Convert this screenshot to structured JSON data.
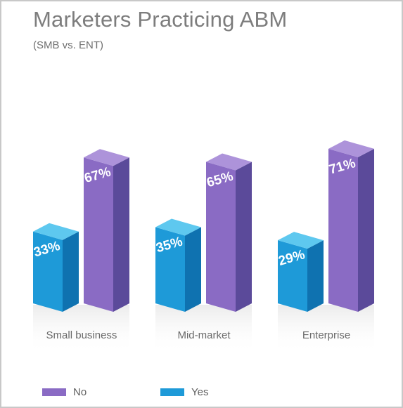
{
  "chart_data": {
    "type": "bar",
    "title": "Marketers Practicing ABM",
    "subtitle": "(SMB vs. ENT)",
    "categories": [
      "Small business",
      "Mid-market",
      "Enterprise"
    ],
    "series": [
      {
        "name": "Yes",
        "values": [
          33,
          35,
          29
        ],
        "labels": [
          "33%",
          "35%",
          "29%"
        ],
        "color": "#1e9ad8"
      },
      {
        "name": "No",
        "values": [
          67,
          65,
          71
        ],
        "labels": [
          "67%",
          "65%",
          "71%"
        ],
        "color": "#8a6bc4"
      }
    ],
    "ylim": [
      0,
      100
    ],
    "grid": false,
    "style": "3d-bar",
    "legend_position": "bottom-left"
  },
  "legend": {
    "items": [
      {
        "label": "No",
        "color": "#8a6bc4"
      },
      {
        "label": "Yes",
        "color": "#1e9ad8"
      }
    ]
  },
  "colors": {
    "yes_front": "#1e9ad8",
    "yes_side": "#0f72b0",
    "yes_top": "#5ec8ef",
    "no_front": "#8a6bc4",
    "no_side": "#5b4a9a",
    "no_top": "#ad93da"
  }
}
